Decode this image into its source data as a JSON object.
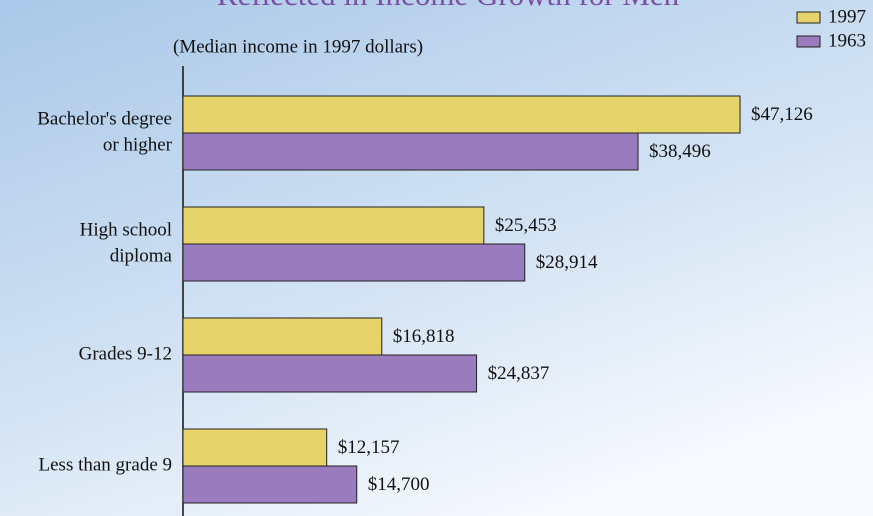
{
  "chart_data": {
    "type": "bar",
    "orientation": "horizontal",
    "title": "Reflected in Income Growth for Men",
    "subtitle": "(Median income in 1997 dollars)",
    "categories": [
      [
        "Bachelor's degree",
        "or higher"
      ],
      [
        "High school",
        "diploma"
      ],
      [
        "Grades 9-12"
      ],
      [
        "Less than grade 9"
      ]
    ],
    "series": [
      {
        "name": "1997",
        "color": "#e6d46a",
        "values": [
          47126,
          25453,
          16818,
          12157
        ],
        "value_labels": [
          "$47,126",
          "$25,453",
          "$16,818",
          "$12,157"
        ]
      },
      {
        "name": "1963",
        "color": "#9a7bbd",
        "values": [
          38496,
          28914,
          24837,
          14700
        ],
        "value_labels": [
          "$38,496",
          "$28,914",
          "$24,837",
          "$14,700"
        ]
      }
    ],
    "xlim": [
      0,
      50000
    ],
    "legend": "top-right"
  }
}
